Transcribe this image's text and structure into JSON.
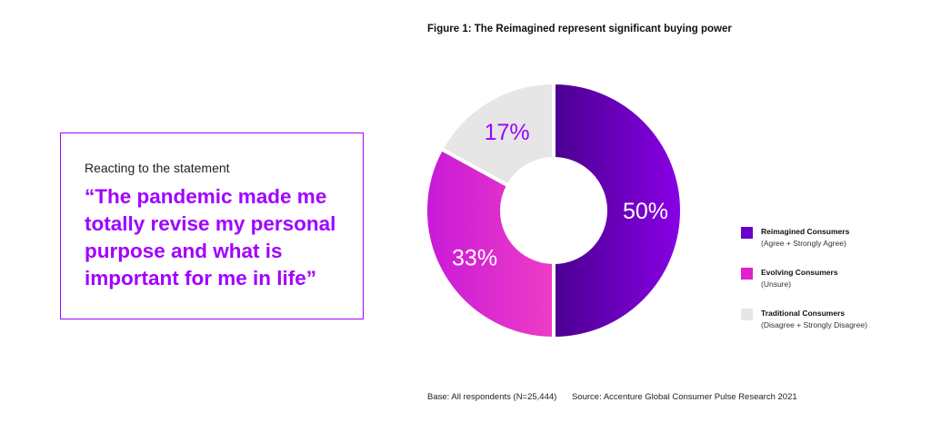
{
  "quote": {
    "intro": "Reacting to the statement",
    "text": "“The pandemic made me totally revise my personal purpose and what is important for me in life”"
  },
  "colors": {
    "accent": "#a100ff",
    "reimagined": "#7500c0",
    "evolving": "#e020c8",
    "traditional": "#e6e6e6"
  },
  "chart_data": {
    "type": "pie",
    "variant": "donut",
    "title": "Figure 1: The Reimagined represent significant buying power",
    "series": [
      {
        "name": "Reimagined Consumers",
        "sublabel": "(Agree + Strongly Agree)",
        "value": 50,
        "label": "50%",
        "color": "#7500c0"
      },
      {
        "name": "Evolving Consumers",
        "sublabel": "(Unsure)",
        "value": 33,
        "label": "33%",
        "color": "#e020c8"
      },
      {
        "name": "Traditional Consumers",
        "sublabel": "(Disagree + Strongly Disagree)",
        "value": 17,
        "label": "17%",
        "color": "#e6e6e6"
      }
    ],
    "legend_position": "right"
  },
  "footnote": {
    "base": "Base: All respondents (N=25,444)",
    "source": "Source: Accenture Global Consumer Pulse Research 2021"
  }
}
